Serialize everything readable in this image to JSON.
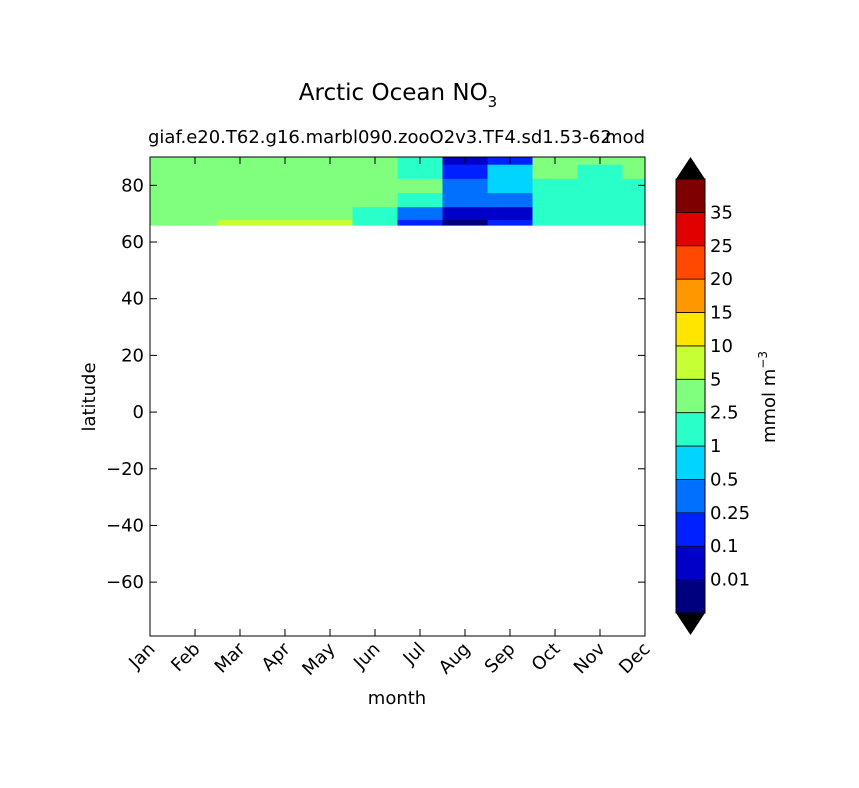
{
  "chart_data": {
    "type": "heatmap",
    "title": "Arctic Ocean NO",
    "title_subscript": "3",
    "subtitle_left": "giaf.e20.T62.g16.marbl090.zooO2v3.TF4.sd1.53-62",
    "subtitle_right": "mod",
    "xlabel": "month",
    "ylabel": "latitude",
    "x_ticks": [
      "Jan",
      "Feb",
      "Mar",
      "Apr",
      "May",
      "Jun",
      "Jul",
      "Aug",
      "Sep",
      "Oct",
      "Nov",
      "Dec"
    ],
    "y_ticks": [
      80,
      60,
      40,
      20,
      0,
      -20,
      -40,
      -60
    ],
    "y_tick_labels": [
      "80",
      "60",
      "40",
      "20",
      "0",
      "−20",
      "−40",
      "−60"
    ],
    "xlim": [
      0,
      11
    ],
    "ylim": [
      -79,
      90
    ],
    "data_lat_range": [
      66,
      90
    ],
    "grid": false,
    "colorbar": {
      "label": "mmol m",
      "label_exponent": "−3",
      "extend": "both",
      "tick_labels": [
        "0.01",
        "0.1",
        "0.25",
        "0.5",
        "1",
        "2.5",
        "5",
        "10",
        "15",
        "20",
        "25",
        "35"
      ],
      "colors": [
        "#00007f",
        "#0000c8",
        "#0020ff",
        "#0070ff",
        "#00d4ff",
        "#29ffc9",
        "#7fff7d",
        "#c6ff33",
        "#ffe500",
        "#ff9700",
        "#ff4800",
        "#e00000",
        "#7f0000"
      ],
      "under_color": "#000000",
      "over_color": "#000000"
    },
    "levels_by_month": {
      "months": [
        "Jan",
        "Feb",
        "Mar",
        "Apr",
        "May",
        "Jun",
        "Jul",
        "Aug",
        "Sep",
        "Oct",
        "Nov",
        "Dec"
      ],
      "lat": [
        66,
        70,
        75,
        80,
        85,
        90
      ],
      "bin_index": [
        [
          6,
          6,
          6,
          6,
          6,
          6
        ],
        [
          6,
          6,
          6,
          6,
          6,
          6
        ],
        [
          7,
          6,
          6,
          6,
          6,
          6
        ],
        [
          7,
          6,
          6,
          6,
          6,
          6
        ],
        [
          7,
          6,
          6,
          6,
          6,
          6
        ],
        [
          5,
          5,
          6,
          6,
          6,
          6
        ],
        [
          2,
          3,
          5,
          6,
          5,
          5
        ],
        [
          0,
          1,
          3,
          3,
          2,
          1
        ],
        [
          2,
          1,
          3,
          4,
          4,
          2
        ],
        [
          5,
          5,
          5,
          5,
          6,
          6
        ],
        [
          5,
          5,
          5,
          5,
          5,
          6
        ],
        [
          5,
          5,
          5,
          5,
          6,
          6
        ]
      ]
    }
  }
}
